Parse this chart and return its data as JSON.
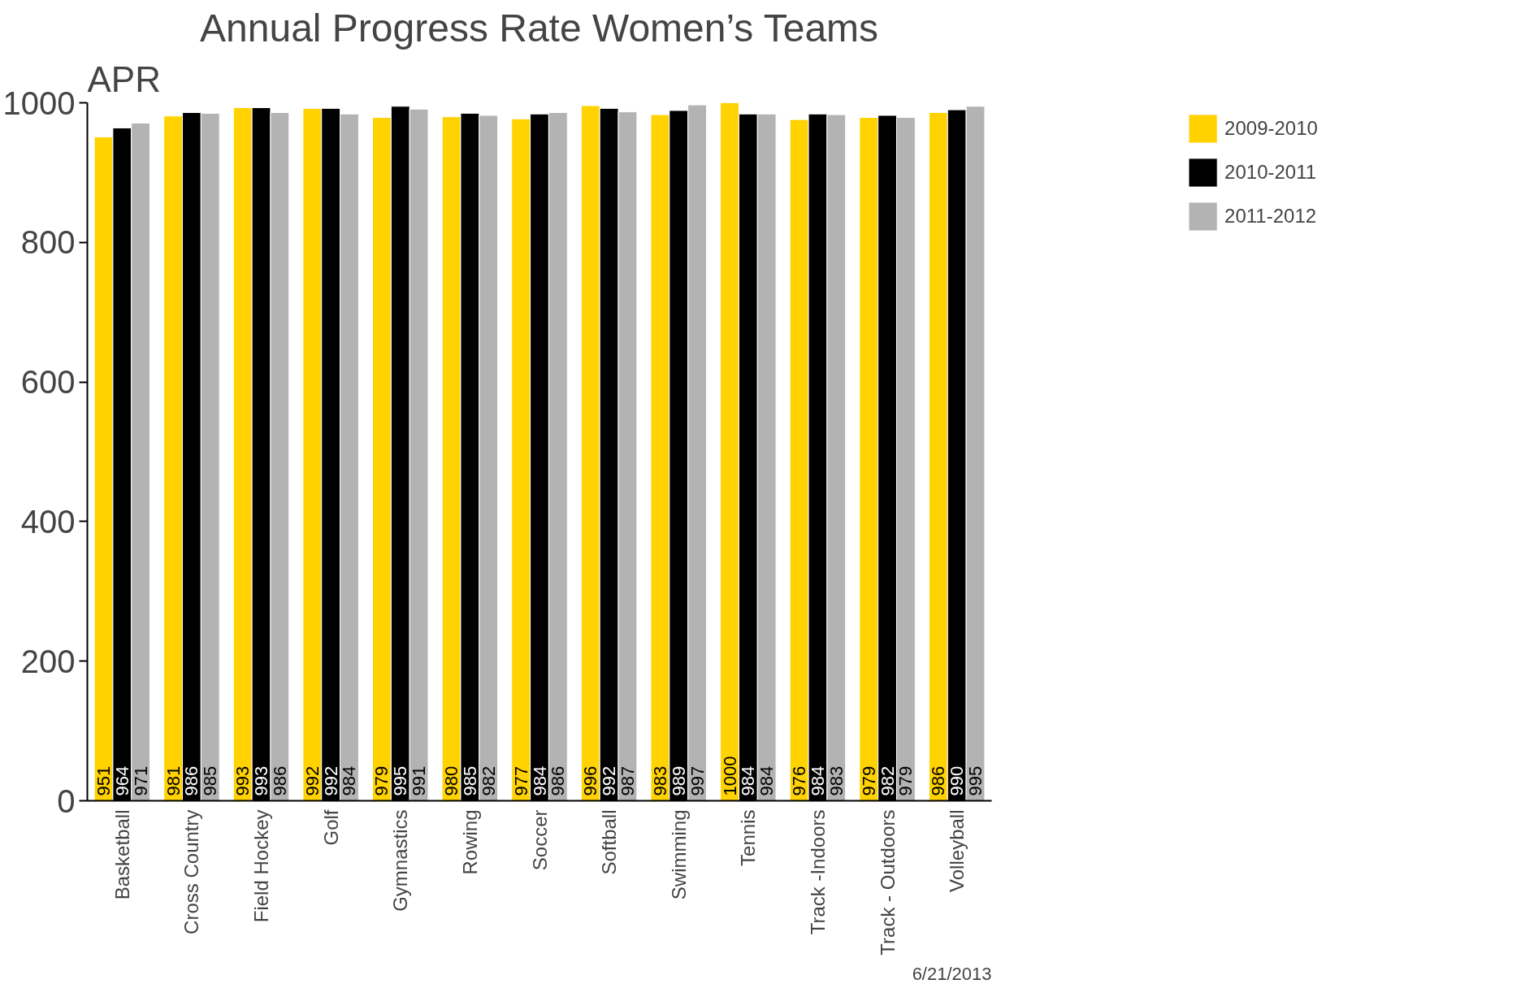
{
  "chart_data": {
    "type": "bar",
    "title": "Annual Progress Rate Women’s Teams",
    "ylabel": "APR",
    "categories": [
      "Basketball",
      "Cross Country",
      "Field Hockey",
      "Golf",
      "Gymnastics",
      "Rowing",
      "Soccer",
      "Softball",
      "Swimming",
      "Tennis",
      "Track -Indoors",
      "Track - Outdoors",
      "Volleyball"
    ],
    "series": [
      {
        "name": "2009-2010",
        "color": "#ffd200",
        "values": [
          951,
          981,
          993,
          992,
          979,
          980,
          977,
          996,
          983,
          1000,
          976,
          979,
          986
        ]
      },
      {
        "name": "2010-2011",
        "color": "#000000",
        "values": [
          964,
          986,
          993,
          992,
          995,
          985,
          984,
          992,
          989,
          984,
          984,
          982,
          990
        ]
      },
      {
        "name": "2011-2012",
        "color": "#b3b3b3",
        "values": [
          971,
          985,
          986,
          984,
          991,
          982,
          986,
          987,
          997,
          984,
          983,
          979,
          995
        ]
      }
    ],
    "ylim": [
      0,
      1000
    ],
    "yticks": [
      0,
      200,
      400,
      600,
      800,
      1000
    ],
    "grid": false,
    "legend": "top right",
    "data_labels": true,
    "annotations": [
      "6/21/2013"
    ]
  }
}
